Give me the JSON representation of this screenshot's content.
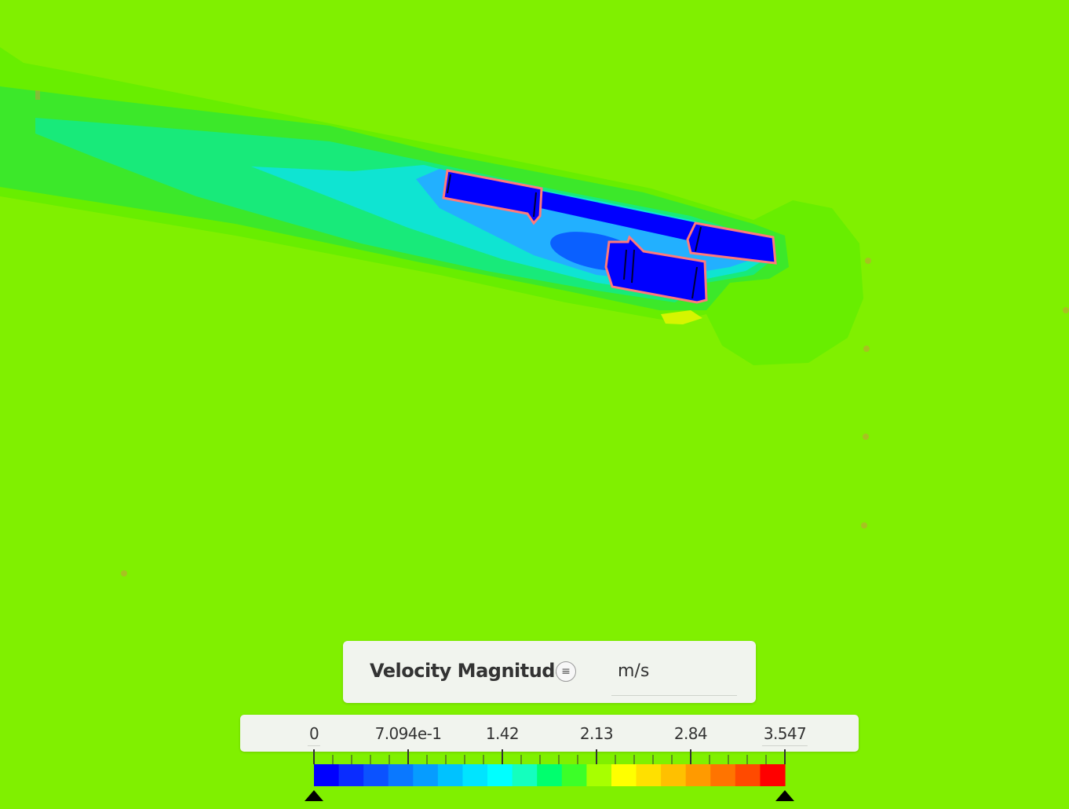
{
  "scene": {
    "background_color": "#80f000",
    "contour": "velocity magnitude field around object"
  },
  "legend": {
    "title": "Velocity Magnitude",
    "menu_icon": "list-icon",
    "unit": "m/s",
    "min_value": "0",
    "max_value": "3.547",
    "tick_labels": [
      "0",
      "7.094e-1",
      "1.42",
      "2.13",
      "2.84",
      "3.547"
    ],
    "colors": [
      "#0000ff",
      "#0a2cff",
      "#0b52ff",
      "#0a78ff",
      "#069cff",
      "#00c2ff",
      "#00e4ff",
      "#00ffff",
      "#14ffbe",
      "#00ff6e",
      "#3cff28",
      "#a8ff00",
      "#ffff00",
      "#ffe000",
      "#ffc000",
      "#ff9a00",
      "#ff7400",
      "#ff4a00",
      "#ff0000"
    ]
  }
}
